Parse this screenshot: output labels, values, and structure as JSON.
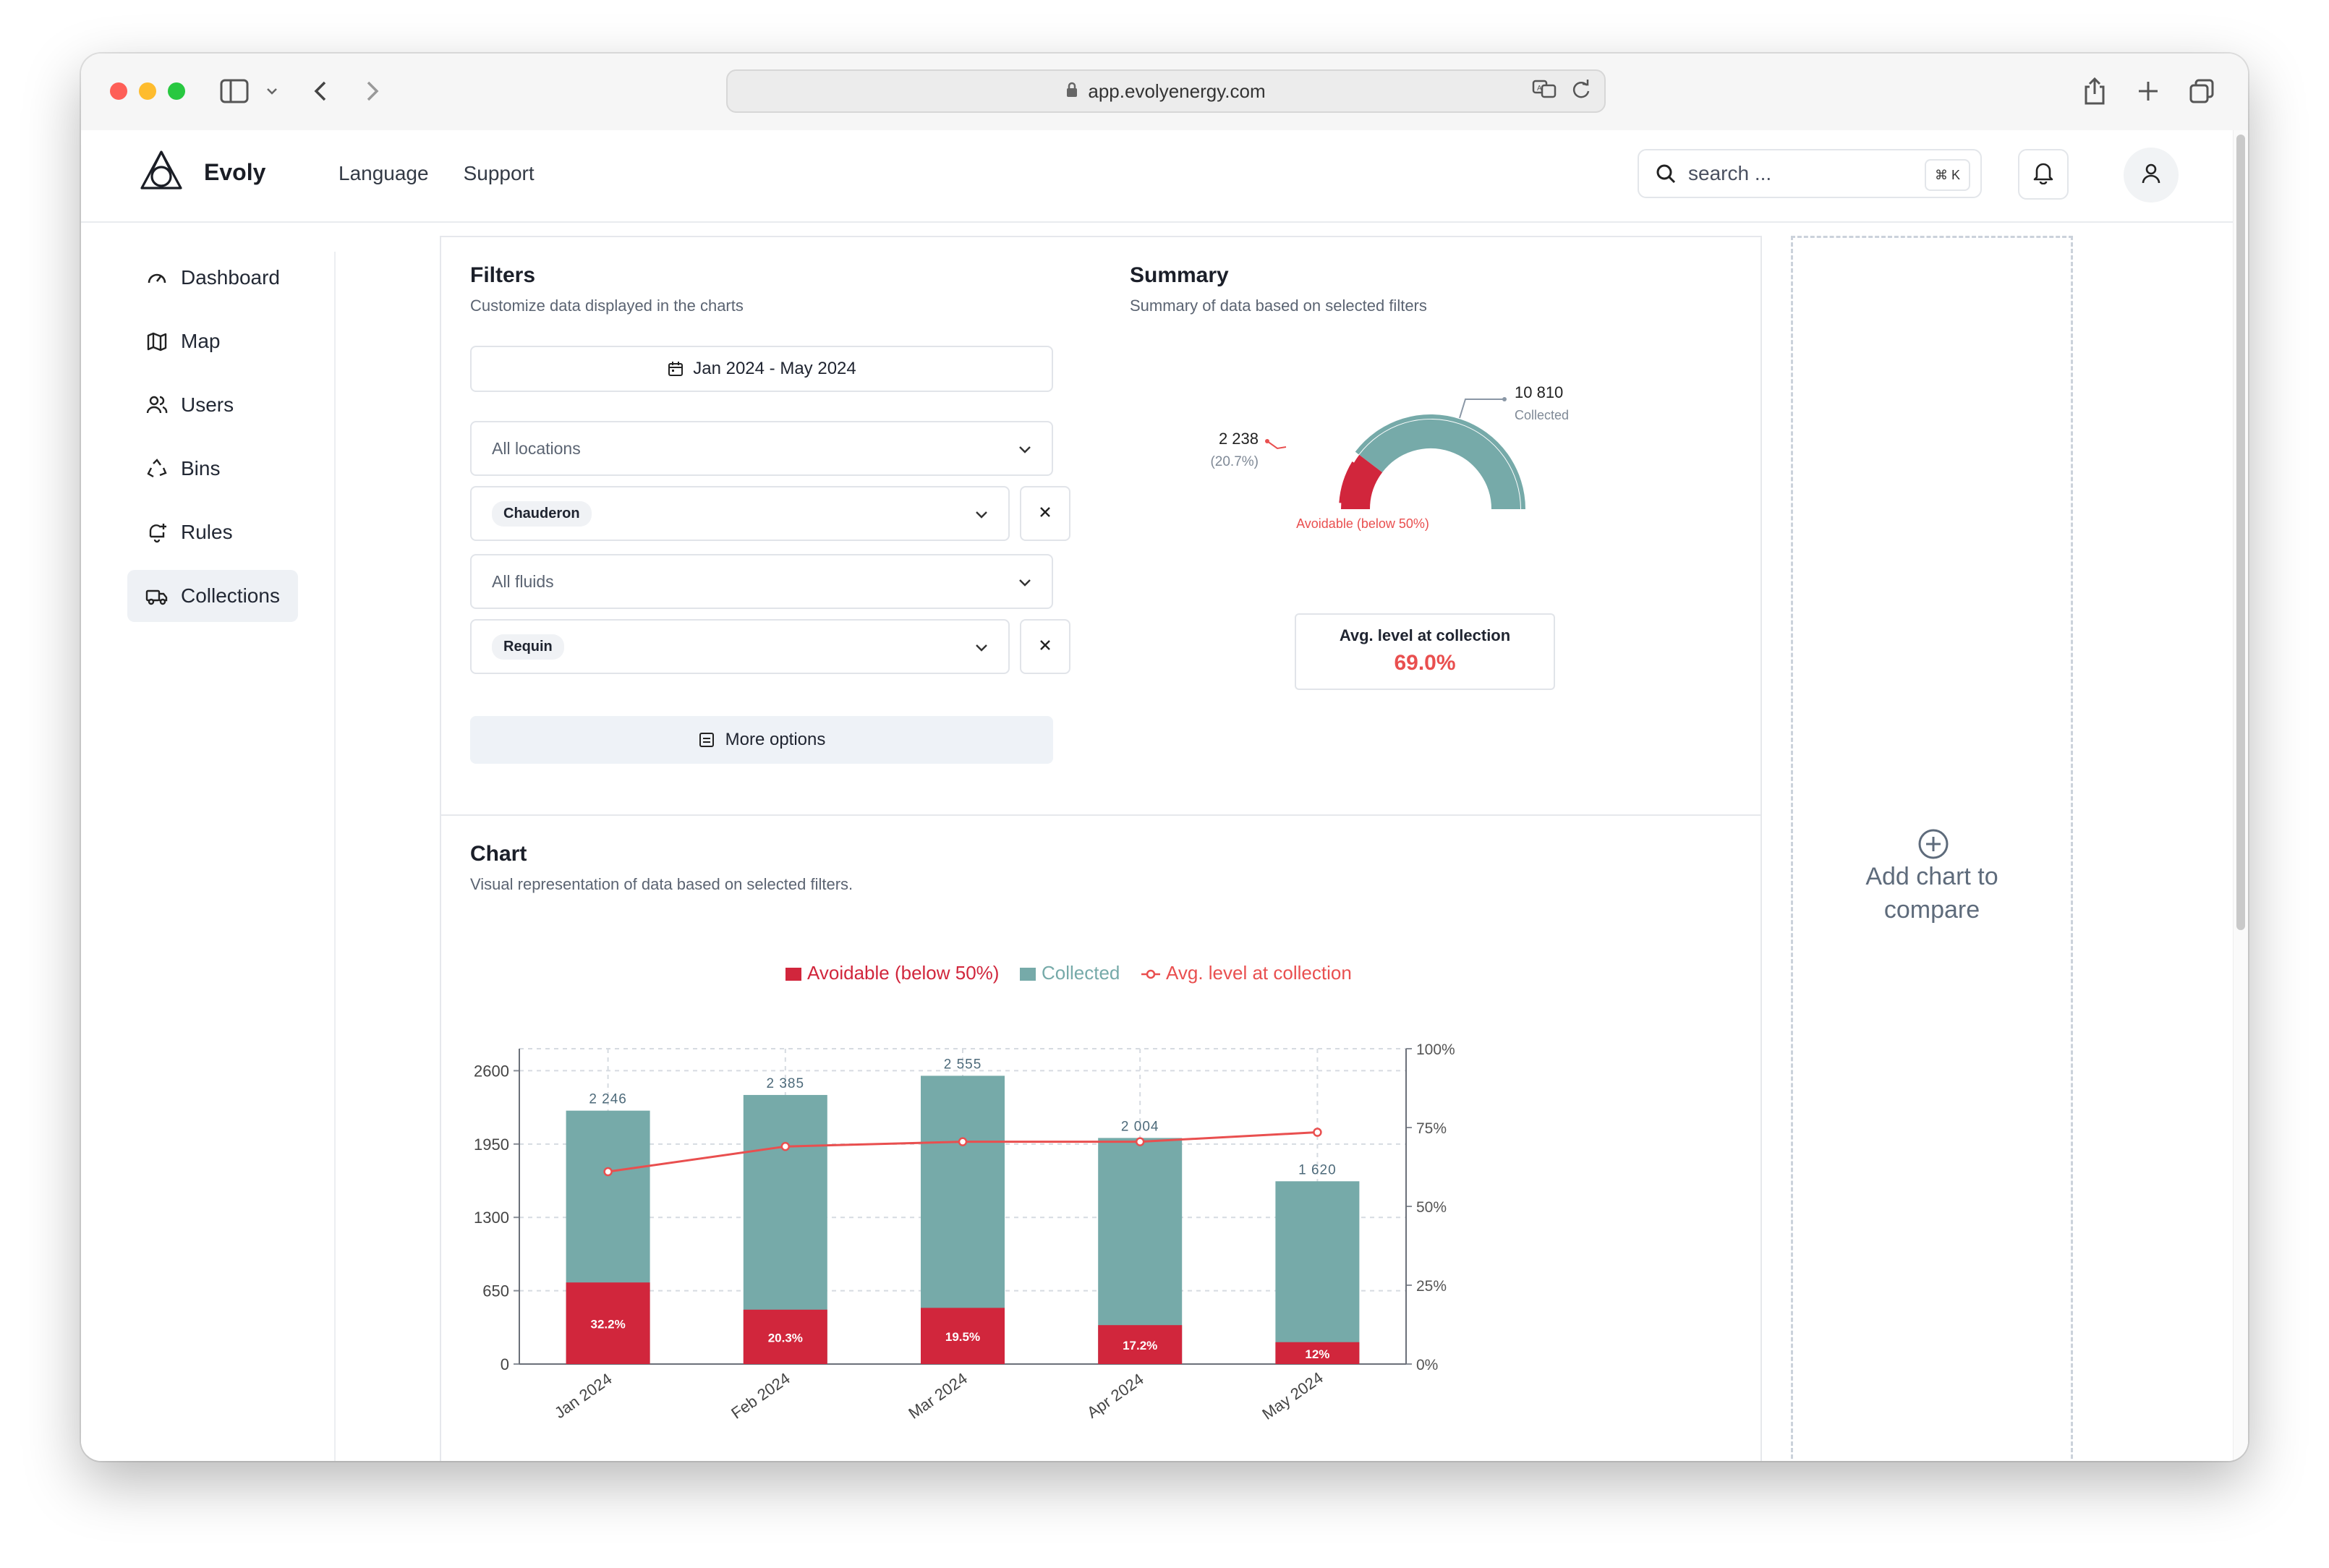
{
  "browser": {
    "url": "app.evolyenergy.com"
  },
  "header": {
    "brand": "Evoly",
    "nav": [
      "Language",
      "Support"
    ],
    "search_placeholder": "search ...",
    "search_shortcut": "⌘ K"
  },
  "sidebar": {
    "items": [
      {
        "label": "Dashboard",
        "icon": "gauge-icon"
      },
      {
        "label": "Map",
        "icon": "map-icon"
      },
      {
        "label": "Users",
        "icon": "users-icon"
      },
      {
        "label": "Bins",
        "icon": "recycle-icon"
      },
      {
        "label": "Rules",
        "icon": "bell-plus-icon"
      },
      {
        "label": "Collections",
        "icon": "truck-icon",
        "active": true
      }
    ]
  },
  "filters": {
    "title": "Filters",
    "subtitle": "Customize data displayed in the charts",
    "date_range": "Jan 2024 - May 2024",
    "locations_placeholder": "All locations",
    "location_selected": "Chauderon",
    "fluids_placeholder": "All fluids",
    "fluid_selected": "Requin",
    "more_options": "More options"
  },
  "summary": {
    "title": "Summary",
    "subtitle": "Summary of data based on selected filters",
    "collected_value": "10 810",
    "collected_label": "Collected",
    "avoidable_value": "2 238",
    "avoidable_pct": "(20.7%)",
    "avoidable_label": "Avoidable (below 50%)",
    "avoidable_fraction": 0.207,
    "avg_label": "Avg. level at collection",
    "avg_value": "69.0%",
    "colors": {
      "collected": "#76aaa9",
      "avoidable": "#d1263c",
      "accent": "#e94f4f"
    }
  },
  "chart_section": {
    "title": "Chart",
    "subtitle": "Visual representation of data based on selected filters."
  },
  "compare": {
    "line1": "Add chart to",
    "line2": "compare"
  },
  "chart_data": {
    "type": "bar",
    "categories": [
      "Jan 2024",
      "Feb 2024",
      "Mar 2024",
      "Apr 2024",
      "May 2024"
    ],
    "totals": [
      2246,
      2385,
      2555,
      2004,
      1620
    ],
    "total_labels": [
      "2 246",
      "2 385",
      "2 555",
      "2 004",
      "1 620"
    ],
    "series": [
      {
        "name": "Avoidable (below 50%)",
        "color": "#d1263c",
        "values": [
          723,
          482,
          498,
          345,
          194
        ],
        "labels": [
          "32.2%",
          "20.3%",
          "19.5%",
          "17.2%",
          "12%"
        ]
      },
      {
        "name": "Collected",
        "color": "#76aaa9",
        "values": [
          2246,
          2385,
          2555,
          2004,
          1620
        ]
      },
      {
        "name": "Avg. level at collection",
        "color": "#e94f4f",
        "type": "line",
        "axis": "right",
        "values": [
          61,
          69,
          70.5,
          70.5,
          73.5
        ]
      }
    ],
    "y_ticks": [
      "0",
      "650",
      "1300",
      "1950",
      "2600"
    ],
    "y_tick_values": [
      0,
      650,
      1300,
      1950,
      2600
    ],
    "ylim": [
      0,
      2795
    ],
    "y2_ticks": [
      "0%",
      "25%",
      "50%",
      "75%",
      "100%"
    ],
    "y2lim": [
      0,
      100
    ],
    "legend_position": "top-center",
    "grid": true
  }
}
